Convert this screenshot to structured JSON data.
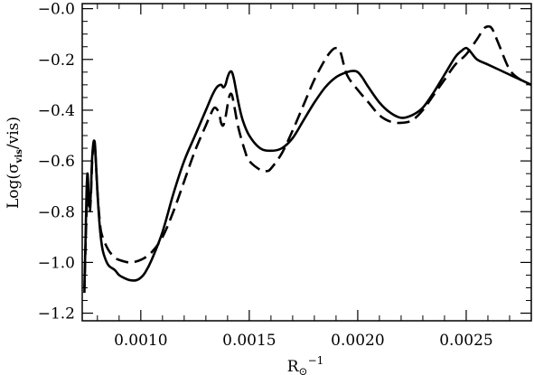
{
  "chart_data": {
    "type": "line",
    "xlabel": {
      "base": "R",
      "sub": "⊙",
      "sup": "−1"
    },
    "ylabel": {
      "prefix": "Log(σ",
      "sub": "vis",
      "suffix": "/vis)"
    },
    "xlim": [
      0.00073,
      0.0028
    ],
    "ylim": [
      -1.23,
      0.02
    ],
    "xticks": [
      0.001,
      0.0015,
      0.002,
      0.0025
    ],
    "xtick_labels": [
      "0.0010",
      "0.0015",
      "0.0020",
      "0.0025"
    ],
    "yticks": [
      -1.2,
      -1.0,
      -0.8,
      -0.6,
      -0.4,
      -0.2,
      0.0
    ],
    "ytick_labels": [
      "−1.2",
      "−1.0",
      "−0.8",
      "−0.6",
      "−0.4",
      "−0.2",
      "−0.0"
    ],
    "grid": false,
    "series": [
      {
        "style": "solid",
        "color": "#000000",
        "x": [
          0.00074,
          0.000745,
          0.00075,
          0.000755,
          0.00076,
          0.000765,
          0.00077,
          0.000775,
          0.00078,
          0.000785,
          0.00079,
          0.0008,
          0.00081,
          0.00082,
          0.00083,
          0.00085,
          0.00088,
          0.0009,
          0.00092,
          0.00095,
          0.00098,
          0.001,
          0.00102,
          0.00105,
          0.0011,
          0.00115,
          0.0012,
          0.00125,
          0.0013,
          0.00133,
          0.00135,
          0.00137,
          0.00138,
          0.00139,
          0.0014,
          0.00141,
          0.00142,
          0.00143,
          0.00145,
          0.00147,
          0.0015,
          0.00155,
          0.0016,
          0.00165,
          0.0017,
          0.00175,
          0.0018,
          0.00185,
          0.0019,
          0.00195,
          0.00198,
          0.002,
          0.00202,
          0.00205,
          0.0021,
          0.00215,
          0.0022,
          0.00225,
          0.0023,
          0.00235,
          0.0024,
          0.00245,
          0.00248,
          0.0025,
          0.00252,
          0.00255,
          0.0026,
          0.00265,
          0.0027,
          0.00275,
          0.0028
        ],
        "y": [
          -1.1,
          -0.92,
          -0.72,
          -0.65,
          -0.75,
          -0.78,
          -0.72,
          -0.6,
          -0.54,
          -0.52,
          -0.55,
          -0.72,
          -0.85,
          -0.93,
          -0.97,
          -1.01,
          -1.03,
          -1.05,
          -1.06,
          -1.07,
          -1.07,
          -1.06,
          -1.04,
          -0.99,
          -0.88,
          -0.73,
          -0.6,
          -0.5,
          -0.4,
          -0.34,
          -0.31,
          -0.3,
          -0.31,
          -0.3,
          -0.27,
          -0.25,
          -0.25,
          -0.28,
          -0.37,
          -0.44,
          -0.5,
          -0.55,
          -0.56,
          -0.55,
          -0.51,
          -0.44,
          -0.37,
          -0.31,
          -0.27,
          -0.25,
          -0.245,
          -0.25,
          -0.27,
          -0.31,
          -0.37,
          -0.41,
          -0.43,
          -0.42,
          -0.39,
          -0.33,
          -0.26,
          -0.19,
          -0.165,
          -0.155,
          -0.17,
          -0.2,
          -0.22,
          -0.24,
          -0.26,
          -0.28,
          -0.3
        ]
      },
      {
        "style": "dashed",
        "color": "#000000",
        "x": [
          0.00074,
          0.000745,
          0.00075,
          0.000755,
          0.00076,
          0.000765,
          0.00077,
          0.000775,
          0.00078,
          0.000785,
          0.00079,
          0.0008,
          0.00081,
          0.00082,
          0.00085,
          0.00088,
          0.0009,
          0.00095,
          0.001,
          0.00105,
          0.0011,
          0.00115,
          0.0012,
          0.00125,
          0.0013,
          0.00132,
          0.00134,
          0.00136,
          0.00137,
          0.00138,
          0.00139,
          0.0014,
          0.00141,
          0.00142,
          0.00143,
          0.00145,
          0.00148,
          0.0015,
          0.00155,
          0.00158,
          0.0016,
          0.00165,
          0.0017,
          0.00175,
          0.0018,
          0.00185,
          0.00188,
          0.0019,
          0.00192,
          0.00195,
          0.002,
          0.00205,
          0.0021,
          0.00215,
          0.0022,
          0.00225,
          0.0023,
          0.00235,
          0.0024,
          0.00245,
          0.0025,
          0.00255,
          0.00258,
          0.0026,
          0.00262,
          0.00265,
          0.0027,
          0.00275,
          0.0028
        ],
        "y": [
          -1.12,
          -0.95,
          -0.8,
          -0.7,
          -0.78,
          -0.8,
          -0.74,
          -0.62,
          -0.55,
          -0.53,
          -0.56,
          -0.72,
          -0.83,
          -0.89,
          -0.95,
          -0.98,
          -0.99,
          -1.0,
          -0.99,
          -0.96,
          -0.9,
          -0.8,
          -0.68,
          -0.56,
          -0.46,
          -0.42,
          -0.39,
          -0.41,
          -0.45,
          -0.46,
          -0.43,
          -0.38,
          -0.34,
          -0.34,
          -0.38,
          -0.47,
          -0.56,
          -0.6,
          -0.635,
          -0.64,
          -0.63,
          -0.57,
          -0.48,
          -0.38,
          -0.28,
          -0.2,
          -0.165,
          -0.155,
          -0.17,
          -0.26,
          -0.32,
          -0.37,
          -0.42,
          -0.445,
          -0.45,
          -0.44,
          -0.4,
          -0.34,
          -0.28,
          -0.22,
          -0.18,
          -0.12,
          -0.08,
          -0.07,
          -0.08,
          -0.14,
          -0.24,
          -0.28,
          -0.3
        ]
      }
    ]
  }
}
